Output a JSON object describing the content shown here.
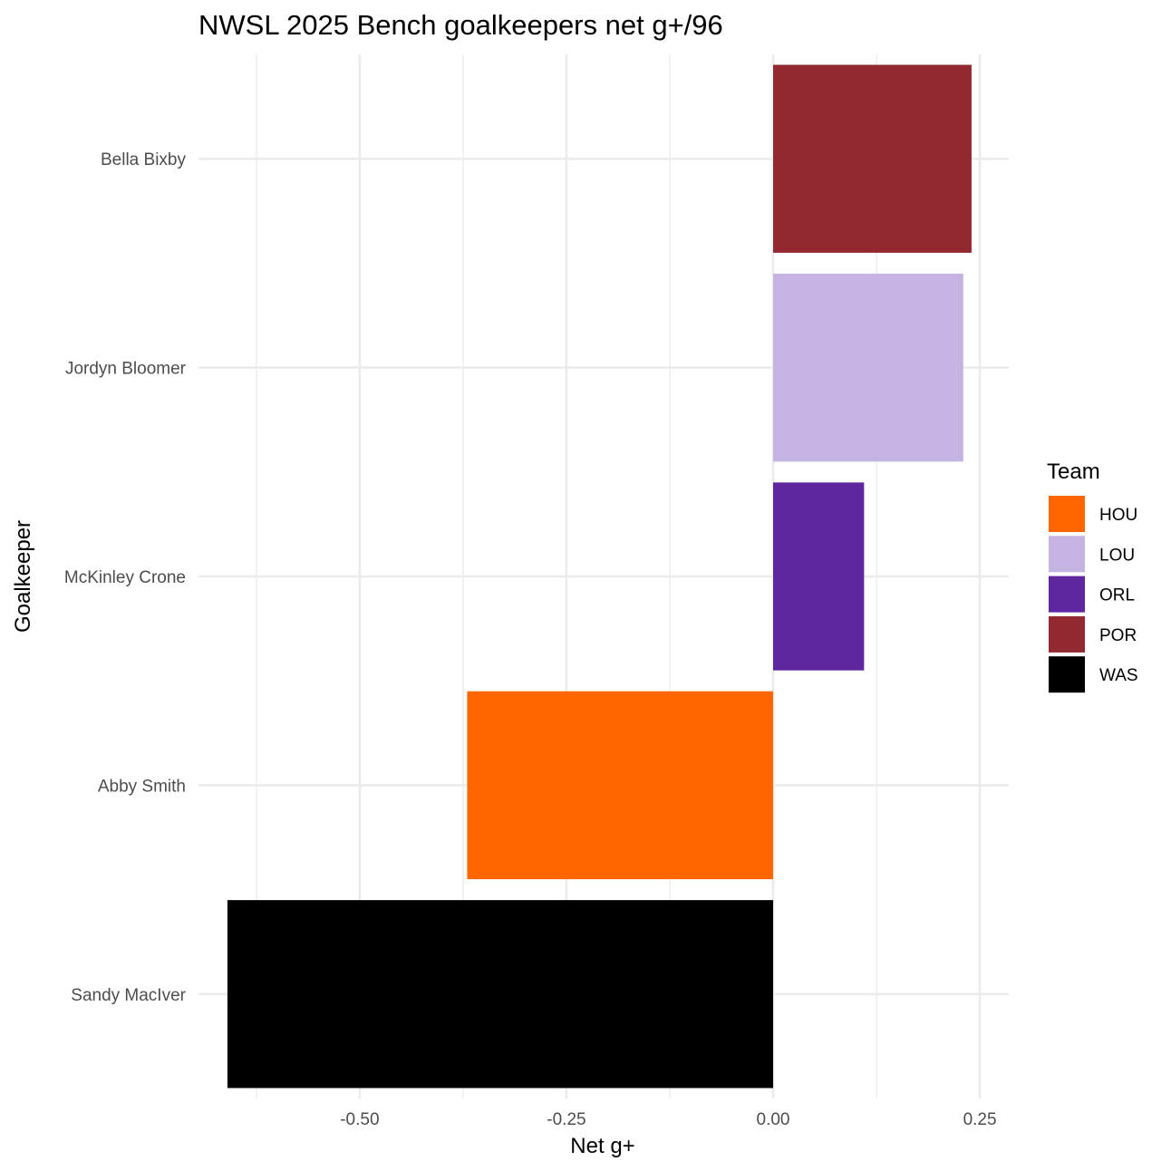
{
  "chart_data": {
    "type": "bar",
    "orientation": "horizontal",
    "title": "NWSL 2025 Bench goalkeepers net g+/96",
    "xlabel": "Net g+",
    "ylabel": "Goalkeeper",
    "xlim": [
      -0.695,
      0.285
    ],
    "x_ticks": [
      "-0.50",
      "-0.25",
      "0.00",
      "0.25"
    ],
    "x_tick_values": [
      -0.5,
      -0.25,
      0.0,
      0.25
    ],
    "grid": true,
    "categories": [
      "Bella Bixby",
      "Jordyn Bloomer",
      "McKinley Crone",
      "Abby Smith",
      "Sandy MacIver"
    ],
    "values": [
      0.24,
      0.23,
      0.11,
      -0.37,
      -0.66
    ],
    "teams": [
      "POR",
      "LOU",
      "ORL",
      "HOU",
      "WAS"
    ],
    "legend": {
      "title": "Team",
      "placement": "right",
      "entries": [
        {
          "label": "HOU",
          "color": "#FF6600"
        },
        {
          "label": "LOU",
          "color": "#C5B3E2"
        },
        {
          "label": "ORL",
          "color": "#5E27A0"
        },
        {
          "label": "POR",
          "color": "#922830"
        },
        {
          "label": "WAS",
          "color": "#000000"
        }
      ]
    }
  }
}
